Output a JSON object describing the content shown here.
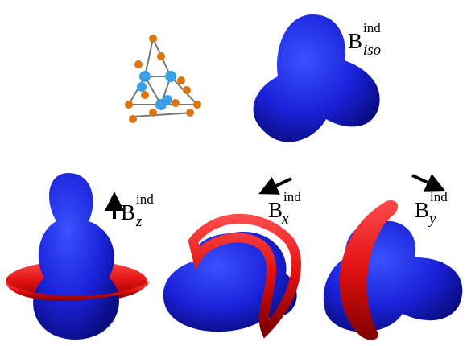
{
  "panels": [
    {
      "label": {
        "base": "B",
        "sup": "ind",
        "sub": "iso"
      }
    },
    {
      "label": {
        "base": "B",
        "sup": "ind",
        "sub": "z"
      }
    },
    {
      "label": {
        "base": "B",
        "sup": "ind",
        "sub": "x"
      }
    },
    {
      "label": {
        "base": "B",
        "sup": "ind",
        "sub": "y"
      }
    }
  ]
}
